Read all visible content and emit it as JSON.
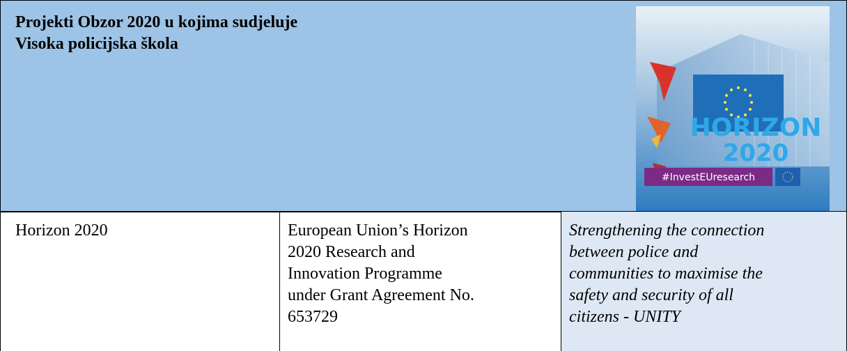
{
  "header": {
    "title_lines": [
      "Projekti Obzor 2020 u kojima sudjeluje",
      "Visoka policijska škola"
    ]
  },
  "logo": {
    "title": "HORIZON",
    "year": "2020",
    "hashtag": "#InvestEUresearch"
  },
  "table": {
    "rows": [
      [
        [
          "Horizon 2020"
        ],
        [
          "European Union’s Horizon",
          "2020 Research and",
          "Innovation Programme",
          "under Grant Agreement No.",
          "653729"
        ],
        [
          "Strengthening the connection",
          "between police and",
          "communities to maximise the",
          "safety and security of all",
          "citizens - UNITY"
        ]
      ]
    ]
  }
}
